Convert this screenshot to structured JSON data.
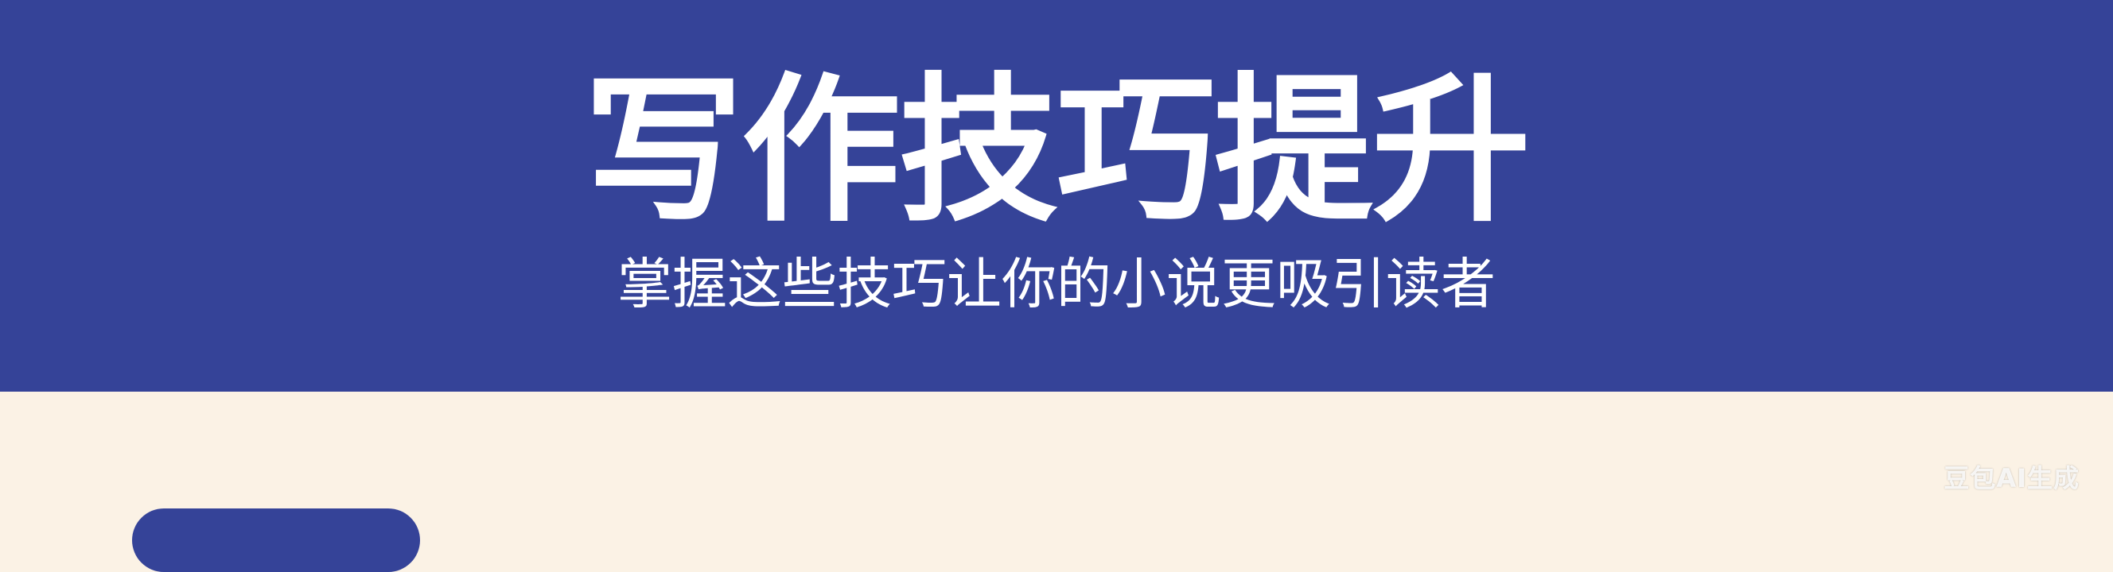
{
  "header": {
    "title": "写作技巧提升",
    "subtitle": "掌握这些技巧让你的小说更吸引读者"
  },
  "watermark": {
    "text": "豆包AI生成"
  },
  "colors": {
    "banner": "#354398",
    "background": "#FBF2E5",
    "text": "#FFFFFF"
  }
}
